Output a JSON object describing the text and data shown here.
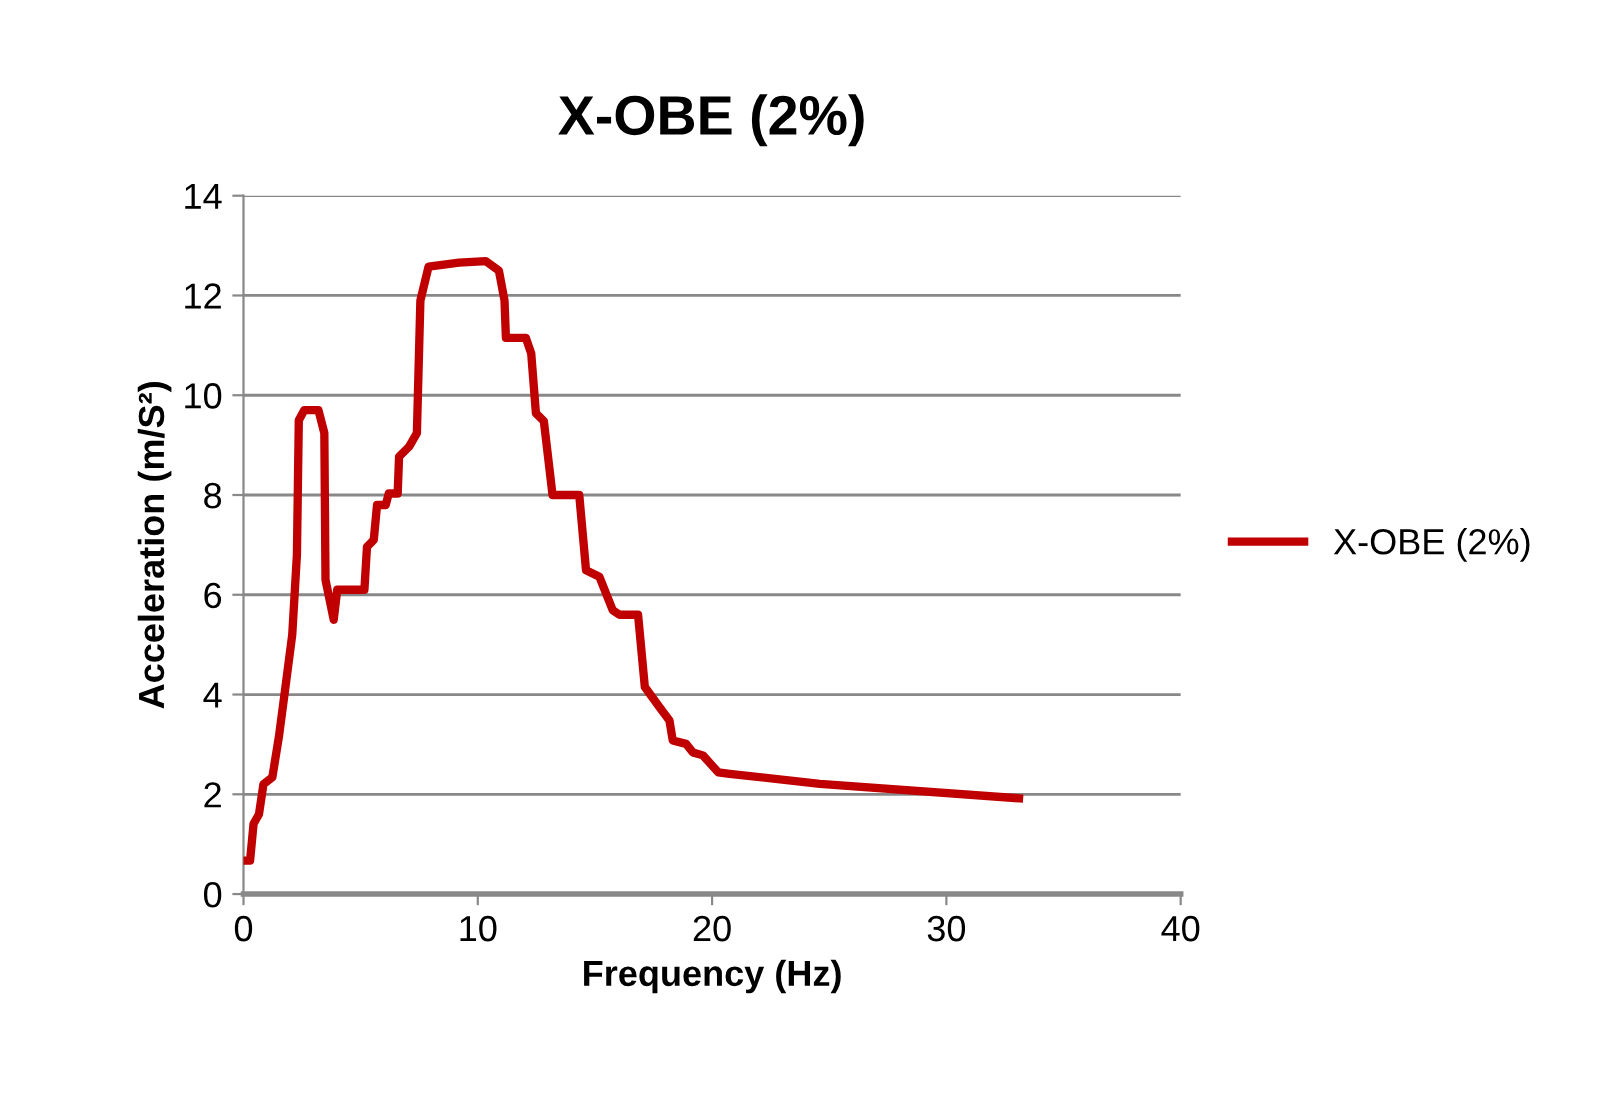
{
  "chart_data": {
    "type": "line",
    "title": "X-OBE (2%)",
    "xlabel": "Frequency (Hz)",
    "ylabel": "Acceleration (m/S²)",
    "xlim": [
      0,
      40
    ],
    "xticks": [
      0,
      10,
      20,
      30,
      40
    ],
    "ylim": [
      0,
      14
    ],
    "yticks": [
      0,
      2,
      4,
      6,
      8,
      10,
      12,
      14
    ],
    "grid": "y",
    "legend": "right",
    "marker": "none",
    "line_style": "solid",
    "series": [
      {
        "name": "X-OBE (2%)",
        "color": "#c00000",
        "x": [
          0.09,
          0.28,
          0.43,
          0.66,
          0.85,
          1.23,
          1.51,
          1.79,
          2.08,
          2.28,
          2.36,
          2.59,
          3.2,
          3.45,
          3.5,
          3.85,
          4.0,
          5.16,
          5.27,
          5.56,
          5.7,
          6.07,
          6.2,
          6.58,
          6.64,
          7.07,
          7.4,
          7.55,
          7.9,
          9.2,
          10.34,
          10.9,
          11.14,
          11.2,
          12.05,
          12.28,
          12.48,
          12.82,
          13.19,
          14.33,
          14.62,
          15.19,
          15.76,
          16.05,
          16.84,
          17.13,
          17.75,
          18.18,
          18.32,
          18.89,
          19.18,
          19.61,
          20.26,
          20.75,
          24.6,
          33.1
        ],
        "values": [
          0.67,
          0.67,
          1.41,
          1.6,
          2.2,
          2.34,
          3.15,
          4.15,
          5.2,
          6.8,
          9.5,
          9.7,
          9.7,
          9.24,
          6.3,
          5.5,
          6.1,
          6.1,
          6.96,
          7.1,
          7.8,
          7.8,
          8.03,
          8.03,
          8.77,
          8.97,
          9.24,
          11.9,
          12.58,
          12.66,
          12.69,
          12.5,
          11.9,
          11.15,
          11.15,
          10.84,
          9.64,
          9.48,
          8.0,
          8.0,
          6.49,
          6.36,
          5.69,
          5.6,
          5.6,
          4.15,
          3.75,
          3.48,
          3.08,
          3.01,
          2.84,
          2.78,
          2.44,
          2.41,
          2.21,
          1.92
        ]
      }
    ]
  }
}
